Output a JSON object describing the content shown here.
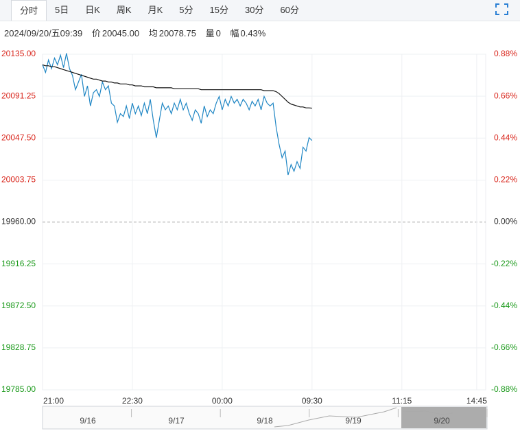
{
  "tabs": [
    "分时",
    "5日",
    "日K",
    "周K",
    "月K",
    "5分",
    "15分",
    "30分",
    "60分"
  ],
  "info": {
    "datetime": "2024/09/20/五09:39",
    "price_label": "价",
    "price": "20045.00",
    "avg_label": "均",
    "avg": "20078.75",
    "vol_label": "量",
    "vol": "0",
    "chg_label": "幅",
    "chg": "0.43%"
  },
  "navigator": {
    "dates": [
      "9/16",
      "9/17",
      "9/18",
      "9/19",
      "9/20"
    ]
  },
  "chart_data": {
    "type": "line",
    "x": [
      0,
      3,
      6,
      9,
      12,
      15,
      18,
      21,
      24,
      27,
      30,
      33,
      36,
      39,
      42,
      45,
      48,
      51,
      54,
      57,
      60,
      63,
      66,
      69,
      72,
      75,
      78,
      81,
      84,
      87,
      90,
      93,
      96,
      99,
      102,
      105,
      108,
      111,
      114,
      117,
      120,
      123,
      126,
      129,
      132,
      135,
      138,
      141,
      144,
      147,
      150,
      153,
      156,
      159,
      162,
      165,
      168,
      171,
      174,
      177,
      180,
      183,
      186,
      189,
      192,
      195,
      198,
      201,
      204,
      207,
      210,
      213,
      216,
      219,
      222,
      225,
      228,
      231,
      234,
      237,
      240,
      243,
      246,
      249,
      252,
      255,
      258,
      261,
      264,
      267,
      270
    ],
    "series": [
      {
        "name": "价",
        "color": "#1f86c4",
        "values": [
          20124,
          20116,
          20129,
          20120,
          20131,
          20124,
          20134,
          20121,
          20136,
          20120,
          20113,
          20098,
          20106,
          20114,
          20091,
          20102,
          20081,
          20095,
          20098,
          20091,
          20106,
          20098,
          20102,
          20084,
          20081,
          20064,
          20073,
          20070,
          20081,
          20068,
          20084,
          20073,
          20081,
          20071,
          20084,
          20073,
          20088,
          20066,
          20048,
          20066,
          20084,
          20077,
          20081,
          20073,
          20084,
          20077,
          20088,
          20077,
          20084,
          20073,
          20066,
          20077,
          20073,
          20063,
          20081,
          20070,
          20077,
          20073,
          20084,
          20091,
          20077,
          20088,
          20081,
          20091,
          20084,
          20088,
          20081,
          20088,
          20084,
          20077,
          20086,
          20081,
          20088,
          20077,
          20091,
          20084,
          20081,
          20084,
          20059,
          20041,
          20027,
          20034,
          20009,
          20020,
          20013,
          20023,
          20016,
          20038,
          20034,
          20048,
          20045
        ]
      },
      {
        "name": "均",
        "color": "#111111",
        "values": [
          20124,
          20123,
          20123,
          20122,
          20122,
          20121,
          20120,
          20119,
          20118,
          20117,
          20116,
          20115,
          20114,
          20113,
          20112,
          20111,
          20110,
          20109,
          20109,
          20108,
          20107,
          20107,
          20106,
          20106,
          20105,
          20105,
          20104,
          20104,
          20104,
          20103,
          20103,
          20102,
          20102,
          20102,
          20101,
          20101,
          20101,
          20101,
          20100,
          20100,
          20100,
          20100,
          20100,
          20100,
          20099,
          20099,
          20099,
          20099,
          20099,
          20099,
          20099,
          20099,
          20099,
          20098,
          20098,
          20098,
          20098,
          20098,
          20098,
          20098,
          20098,
          20098,
          20098,
          20098,
          20098,
          20098,
          20098,
          20098,
          20098,
          20098,
          20098,
          20098,
          20098,
          20098,
          20097,
          20097,
          20097,
          20097,
          20096,
          20094,
          20091,
          20088,
          20085,
          20083,
          20082,
          20081,
          20080,
          20080,
          20079,
          20079,
          20078.75
        ]
      }
    ],
    "xlim": [
      0,
      444
    ],
    "xticks": [
      {
        "value": 0,
        "label": "21:00"
      },
      {
        "value": 90,
        "label": "22:30"
      },
      {
        "value": 180,
        "label": "00:00"
      },
      {
        "value": 270,
        "label": "09:30"
      },
      {
        "value": 360,
        "label": "11:15"
      },
      {
        "value": 435,
        "label": "14:45"
      }
    ],
    "ylim": [
      19785,
      20135
    ],
    "yticks": [
      {
        "value": 20135,
        "label": "20135.00"
      },
      {
        "value": 20091.25,
        "label": "20091.25"
      },
      {
        "value": 20047.5,
        "label": "20047.50"
      },
      {
        "value": 20003.75,
        "label": "20003.75"
      },
      {
        "value": 19960,
        "label": "19960.00"
      },
      {
        "value": 19916.25,
        "label": "19916.25"
      },
      {
        "value": 19872.5,
        "label": "19872.50"
      },
      {
        "value": 19828.75,
        "label": "19828.75"
      },
      {
        "value": 19785,
        "label": "19785.00"
      }
    ],
    "y2lim": [
      -0.88,
      0.88
    ],
    "y2ticks": [
      {
        "value": 0.88,
        "label": "0.88%"
      },
      {
        "value": 0.66,
        "label": "0.66%"
      },
      {
        "value": 0.44,
        "label": "0.44%"
      },
      {
        "value": 0.22,
        "label": "0.22%"
      },
      {
        "value": 0,
        "label": "0.00%"
      },
      {
        "value": -0.22,
        "label": "-0.22%"
      },
      {
        "value": -0.44,
        "label": "-0.44%"
      },
      {
        "value": -0.66,
        "label": "-0.66%"
      },
      {
        "value": -0.88,
        "label": "-0.88%"
      }
    ],
    "baseline": 19960,
    "up_color": "#d9261c",
    "down_color": "#1c9a1c",
    "flat_color": "#333333",
    "grid": true
  }
}
